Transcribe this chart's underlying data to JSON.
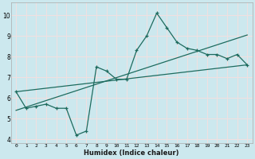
{
  "xlabel": "Humidex (Indice chaleur)",
  "xlim": [
    -0.5,
    23.5
  ],
  "ylim": [
    3.8,
    10.6
  ],
  "yticks": [
    4,
    5,
    6,
    7,
    8,
    9,
    10
  ],
  "xticks": [
    0,
    1,
    2,
    3,
    4,
    5,
    6,
    7,
    8,
    9,
    10,
    11,
    12,
    13,
    14,
    15,
    16,
    17,
    18,
    19,
    20,
    21,
    22,
    23
  ],
  "bg_color": "#cce8ee",
  "grid_color": "#f0e0e0",
  "line_color": "#1e6b5e",
  "main_x": [
    0,
    1,
    2,
    3,
    4,
    5,
    6,
    7,
    8,
    9,
    10,
    11,
    12,
    13,
    14,
    15,
    16,
    17,
    18,
    19,
    20,
    21,
    22,
    23
  ],
  "main_y": [
    6.3,
    5.5,
    5.6,
    5.7,
    5.5,
    5.5,
    4.2,
    4.4,
    7.5,
    7.3,
    6.9,
    6.9,
    8.3,
    9.0,
    10.1,
    9.4,
    8.7,
    8.4,
    8.3,
    8.1,
    8.1,
    7.9,
    8.1,
    7.6
  ]
}
